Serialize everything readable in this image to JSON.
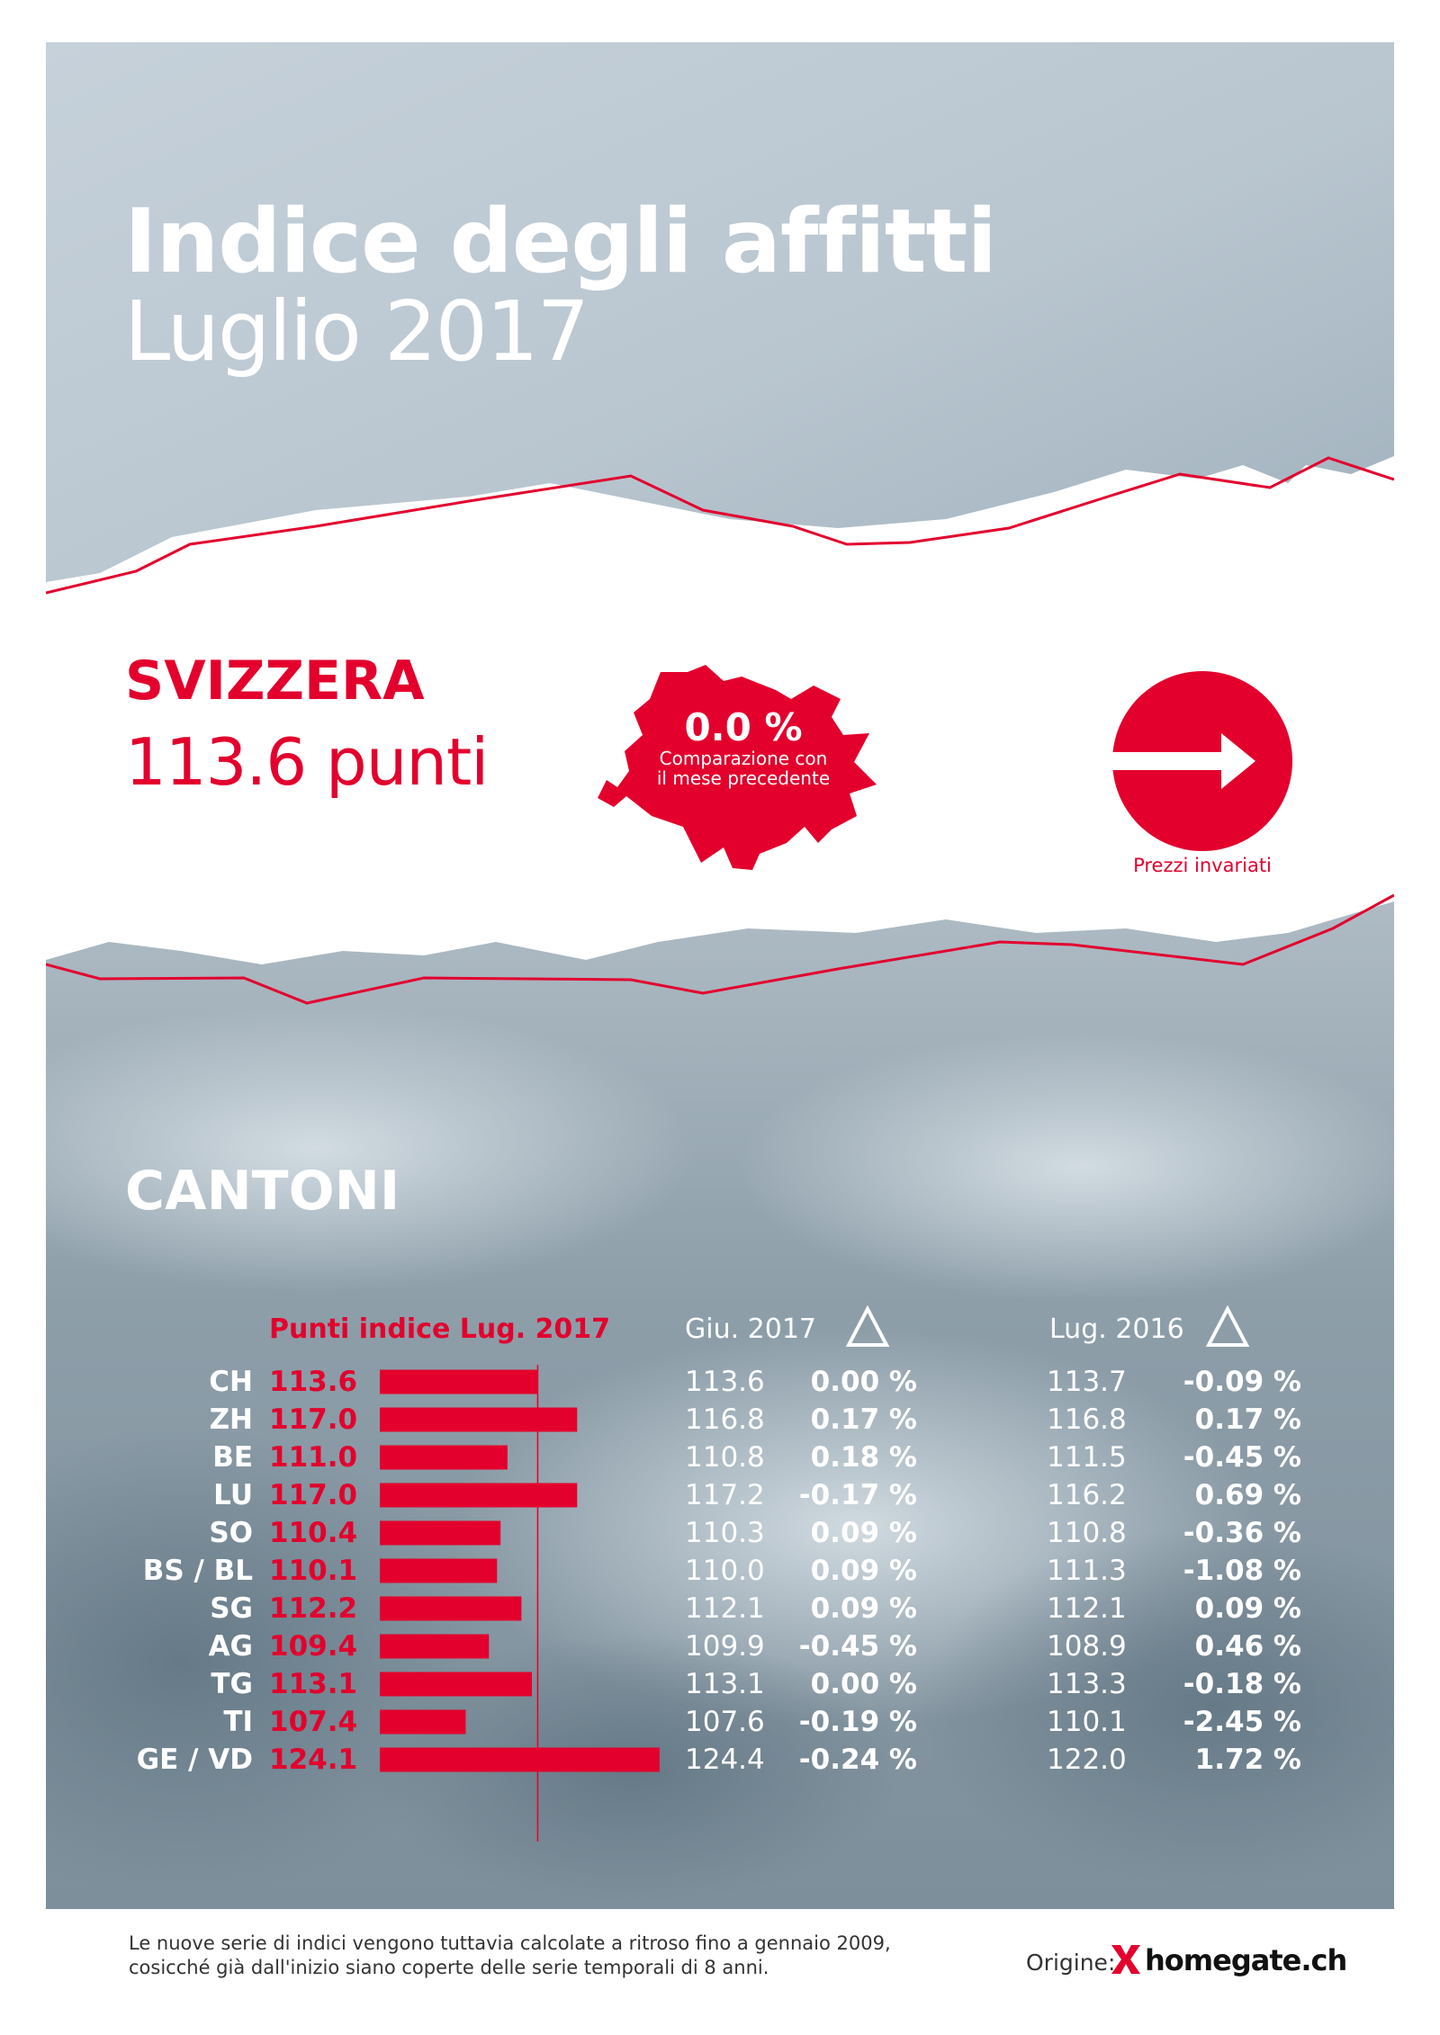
{
  "header": {
    "title": "Indice degli affitti",
    "subtitle": "Luglio 2017"
  },
  "national": {
    "name": "SVIZZERA",
    "points": "113.6 punti",
    "change": "0.0 %",
    "change_note_line1": "Comparazione con",
    "change_note_line2": "il mese precedente",
    "trend_label": "Prezzi invariati",
    "trend_icon": "arrow-right-icon"
  },
  "colors": {
    "accent": "#e3002d",
    "sky": "#b4c3ce",
    "fog": "#8a9ba6"
  },
  "cantons": {
    "title": "CANTONI",
    "col_points": "Punti indice Lug. 2017",
    "col_prev_month": "Giu. 2017",
    "col_prev_year": "Lug. 2016",
    "delta_icon": "delta-triangle-icon"
  },
  "chart_data": {
    "type": "bar",
    "categories": [
      "CH",
      "ZH",
      "BE",
      "LU",
      "SO",
      "BS / BL",
      "SG",
      "AG",
      "TG",
      "TI",
      "GE / VD"
    ],
    "values": [
      113.6,
      117.0,
      111.0,
      117.0,
      110.4,
      110.1,
      112.2,
      109.4,
      113.1,
      107.4,
      124.1
    ],
    "value_labels": [
      "113.6",
      "117.0",
      "111.0",
      "117.0",
      "110.4",
      "110.1",
      "112.2",
      "109.4",
      "113.1",
      "107.4",
      "124.1"
    ],
    "prev_month_labels": [
      "113.6",
      "116.8",
      "110.8",
      "117.2",
      "110.3",
      "110.0",
      "112.1",
      "109.9",
      "113.1",
      "107.6",
      "124.4"
    ],
    "prev_month_change_labels": [
      "0.00 %",
      "0.17 %",
      "0.18 %",
      "-0.17 %",
      "0.09 %",
      "0.09 %",
      "0.09 %",
      "-0.45 %",
      "0.00 %",
      "-0.19 %",
      "-0.24 %"
    ],
    "prev_year_labels": [
      "113.7",
      "116.8",
      "111.5",
      "116.2",
      "110.8",
      "111.3",
      "112.1",
      "108.9",
      "113.3",
      "110.1",
      "122.0"
    ],
    "prev_year_change_labels": [
      "-0.09 %",
      "0.17 %",
      "-0.45 %",
      "0.69 %",
      "-0.36 %",
      "-1.08 %",
      "0.09 %",
      "0.46 %",
      "-0.18 %",
      "-2.45 %",
      "1.72 %"
    ],
    "reference_value": 113.6,
    "grid": false,
    "legend": "none"
  },
  "footer": {
    "note_line1": "Le nuove serie di indici vengono tuttavia calcolate a ritroso fino a gennaio 2009,",
    "note_line2": "cosicché già dall'inizio siano coperte delle serie temporali di 8 anni.",
    "source_label": "Origine:",
    "brand_name": "homegate.ch",
    "brand_icon": "homegate-x-icon"
  }
}
